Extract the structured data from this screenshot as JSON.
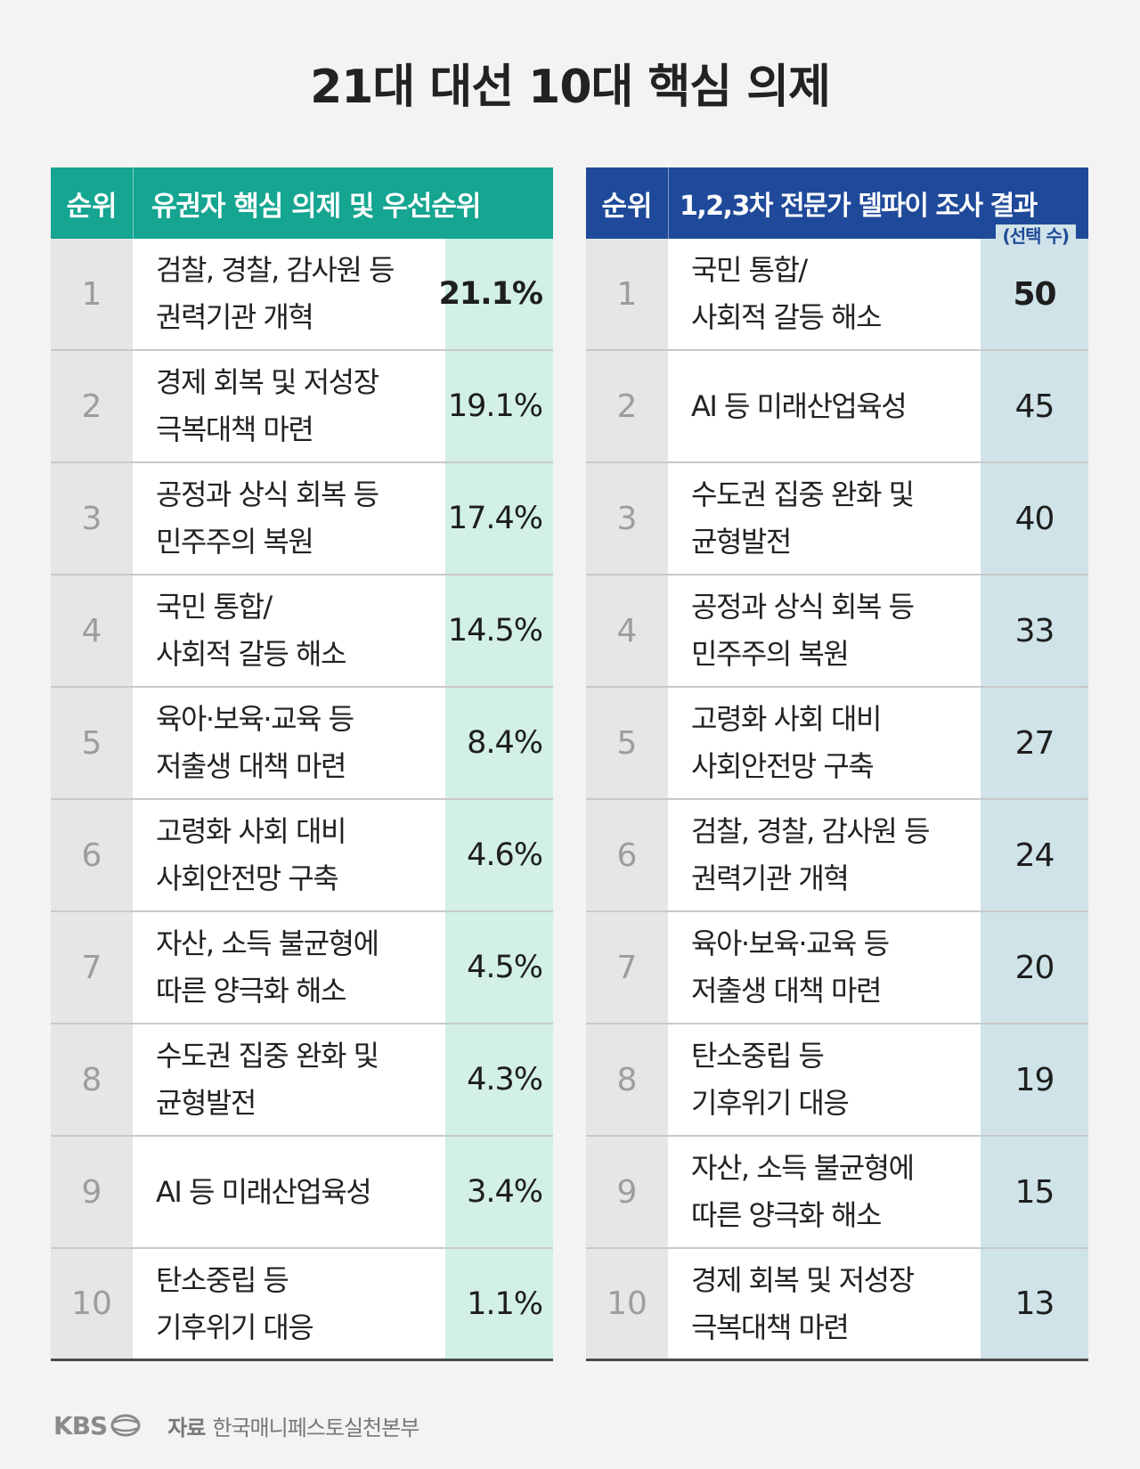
{
  "title": "21대 대선 10대 핵심 의제",
  "left_table": {
    "header_rank": "순위",
    "header_title": "유권자 핵심 의제 및 우선순위"
  },
  "right_table": {
    "header_rank": "순위",
    "header_title": "1,2,3차 전문가 델파이 조사 결과",
    "header_sub": "(선택 수)"
  },
  "chart_data": [
    {
      "type": "table",
      "title": "유권자 핵심 의제 및 우선순위",
      "columns": [
        "순위",
        "유권자 핵심 의제 및 우선순위",
        ""
      ],
      "rows": [
        {
          "rank": "1",
          "issue": "검찰, 경찰, 감사원 등\n권력기관 개혁",
          "value": "21.1%"
        },
        {
          "rank": "2",
          "issue": "경제 회복 및 저성장\n극복대책 마련",
          "value": "19.1%"
        },
        {
          "rank": "3",
          "issue": "공정과 상식 회복 등\n민주주의 복원",
          "value": "17.4%"
        },
        {
          "rank": "4",
          "issue": "국민 통합/\n사회적 갈등 해소",
          "value": "14.5%"
        },
        {
          "rank": "5",
          "issue": "육아·보육·교육 등\n저출생 대책 마련",
          "value": "8.4%"
        },
        {
          "rank": "6",
          "issue": "고령화 사회 대비\n사회안전망 구축",
          "value": "4.6%"
        },
        {
          "rank": "7",
          "issue": "자산, 소득 불균형에\n따른 양극화 해소",
          "value": "4.5%"
        },
        {
          "rank": "8",
          "issue": "수도권 집중 완화 및\n균형발전",
          "value": "4.3%"
        },
        {
          "rank": "9",
          "issue": "AI 등 미래산업육성",
          "value": "3.4%"
        },
        {
          "rank": "10",
          "issue": "탄소중립 등\n기후위기 대응",
          "value": "1.1%"
        }
      ]
    },
    {
      "type": "table",
      "title": "1,2,3차 전문가 델파이 조사 결과",
      "columns": [
        "순위",
        "1,2,3차 전문가 델파이 조사 결과",
        "(선택 수)"
      ],
      "rows": [
        {
          "rank": "1",
          "issue": "국민 통합/\n사회적 갈등 해소",
          "value": "50"
        },
        {
          "rank": "2",
          "issue": "AI 등 미래산업육성",
          "value": "45"
        },
        {
          "rank": "3",
          "issue": "수도권 집중 완화 및\n균형발전",
          "value": "40"
        },
        {
          "rank": "4",
          "issue": "공정과 상식 회복 등\n민주주의 복원",
          "value": "33"
        },
        {
          "rank": "5",
          "issue": "고령화 사회 대비\n사회안전망 구축",
          "value": "27"
        },
        {
          "rank": "6",
          "issue": "검찰, 경찰, 감사원 등\n권력기관 개혁",
          "value": "24"
        },
        {
          "rank": "7",
          "issue": "육아·보육·교육 등\n저출생 대책 마련",
          "value": "20"
        },
        {
          "rank": "8",
          "issue": "탄소중립 등\n기후위기 대응",
          "value": "19"
        },
        {
          "rank": "9",
          "issue": "자산, 소득 불균형에\n따른 양극화 해소",
          "value": "15"
        },
        {
          "rank": "10",
          "issue": "경제 회복 및 저성장\n극복대책 마련",
          "value": "13"
        }
      ]
    }
  ],
  "footer": {
    "logo": "KBS",
    "source_label": "자료",
    "source_text": "한국매니페스토실천본부"
  },
  "colors": {
    "left_header": "#15a591",
    "right_header": "#1f4a9a",
    "left_value_bg": "#d2efe8",
    "right_value_bg": "#cfe3e8",
    "rank_bg": "#e6e6e6"
  }
}
